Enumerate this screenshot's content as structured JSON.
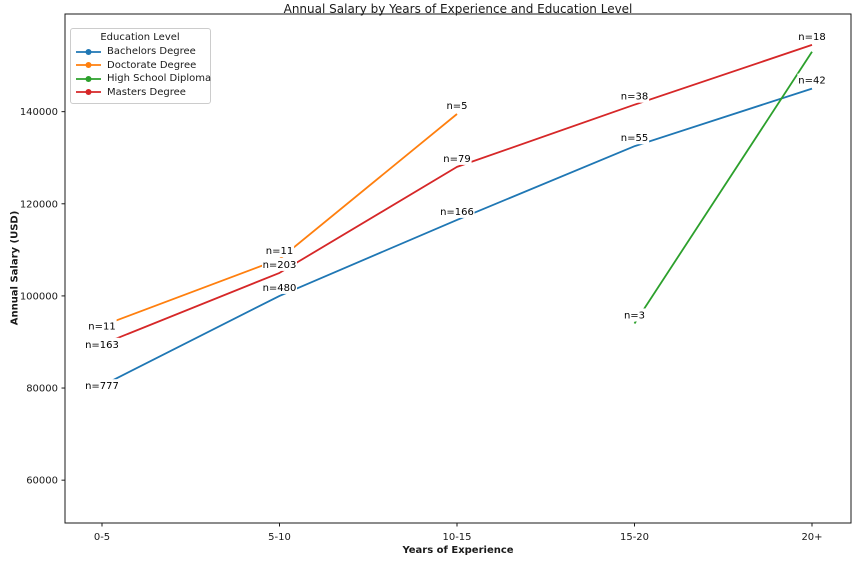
{
  "chart_data": {
    "type": "line",
    "title": "Annual Salary by Years of Experience and Education Level",
    "xlabel": "Years of Experience",
    "ylabel": "Annual Salary (USD)",
    "categories": [
      "0-5",
      "5-10",
      "10-15",
      "15-20",
      "20+"
    ],
    "y_ticks": [
      60000,
      80000,
      100000,
      120000,
      140000
    ],
    "ylim": [
      50700,
      161200
    ],
    "grid": false,
    "legend": {
      "title": "Education Level",
      "position": "upper-left"
    },
    "series": [
      {
        "name": "Bachelors Degree",
        "color": "#1f77b4",
        "categories": [
          "0-5",
          "5-10",
          "10-15",
          "15-20",
          "20+"
        ],
        "values": [
          80500,
          100000,
          116500,
          132500,
          145000
        ],
        "labels": [
          "n=777",
          "n=480",
          "n=166",
          "n=55",
          "n=42"
        ]
      },
      {
        "name": "Doctorate Degree",
        "color": "#ff7f0e",
        "categories": [
          "0-5",
          "5-10",
          "10-15"
        ],
        "values": [
          93500,
          108000,
          139500
        ],
        "labels": [
          "n=11",
          "n=11",
          "n=5"
        ]
      },
      {
        "name": "High School Diploma",
        "color": "#2ca02c",
        "categories": [
          "15-20",
          "20+"
        ],
        "values": [
          94000,
          153000
        ],
        "labels": [
          "n=3",
          null
        ]
      },
      {
        "name": "Masters Degree",
        "color": "#d62728",
        "categories": [
          "0-5",
          "5-10",
          "10-15",
          "15-20",
          "20+"
        ],
        "values": [
          89500,
          105000,
          128000,
          141500,
          154500
        ],
        "labels": [
          "n=163",
          "n=203",
          "n=79",
          "n=38",
          "n=18"
        ]
      }
    ]
  }
}
